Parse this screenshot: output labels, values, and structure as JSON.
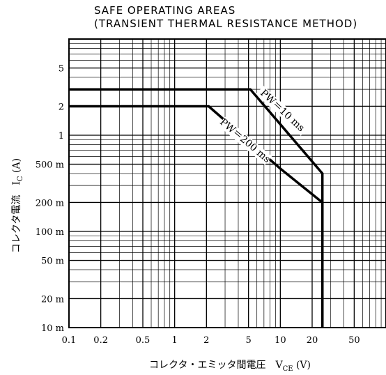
{
  "chart_data": {
    "type": "line",
    "title": [
      "SAFE OPERATING AREAS",
      "(TRANSIENT THERMAL RESISTANCE METHOD)"
    ],
    "xlabel": "コレクタ・エミッタ間電圧　V_CE (V)",
    "ylabel": "コレクタ電流　I_C (A)",
    "x_scale": "log",
    "y_scale": "log",
    "xlim": [
      0.1,
      100
    ],
    "ylim": [
      0.01,
      10
    ],
    "grid": true,
    "x_ticks": [
      {
        "value": 0.1,
        "label": "0.1"
      },
      {
        "value": 0.2,
        "label": "0.2"
      },
      {
        "value": 0.5,
        "label": "0.5"
      },
      {
        "value": 1,
        "label": "1"
      },
      {
        "value": 2,
        "label": "2"
      },
      {
        "value": 5,
        "label": "5"
      },
      {
        "value": 10,
        "label": "10"
      },
      {
        "value": 20,
        "label": "20"
      },
      {
        "value": 50,
        "label": "50"
      }
    ],
    "y_ticks": [
      {
        "value": 0.01,
        "label": "10 m"
      },
      {
        "value": 0.02,
        "label": "20 m"
      },
      {
        "value": 0.05,
        "label": "50 m"
      },
      {
        "value": 0.1,
        "label": "100 m"
      },
      {
        "value": 0.2,
        "label": "200 m"
      },
      {
        "value": 0.5,
        "label": "500 m"
      },
      {
        "value": 1,
        "label": "1"
      },
      {
        "value": 2,
        "label": "2"
      },
      {
        "value": 5,
        "label": "5"
      }
    ],
    "series": [
      {
        "name": "PW＝10 ms",
        "x": [
          0.1,
          5.2,
          10,
          25,
          25
        ],
        "y": [
          3.0,
          3.0,
          1.3,
          0.4,
          0.01
        ]
      },
      {
        "name": "PW＝200 ms",
        "x": [
          0.1,
          2.1,
          10,
          25,
          25
        ],
        "y": [
          2.0,
          2.0,
          0.45,
          0.2,
          0.01
        ]
      }
    ]
  }
}
